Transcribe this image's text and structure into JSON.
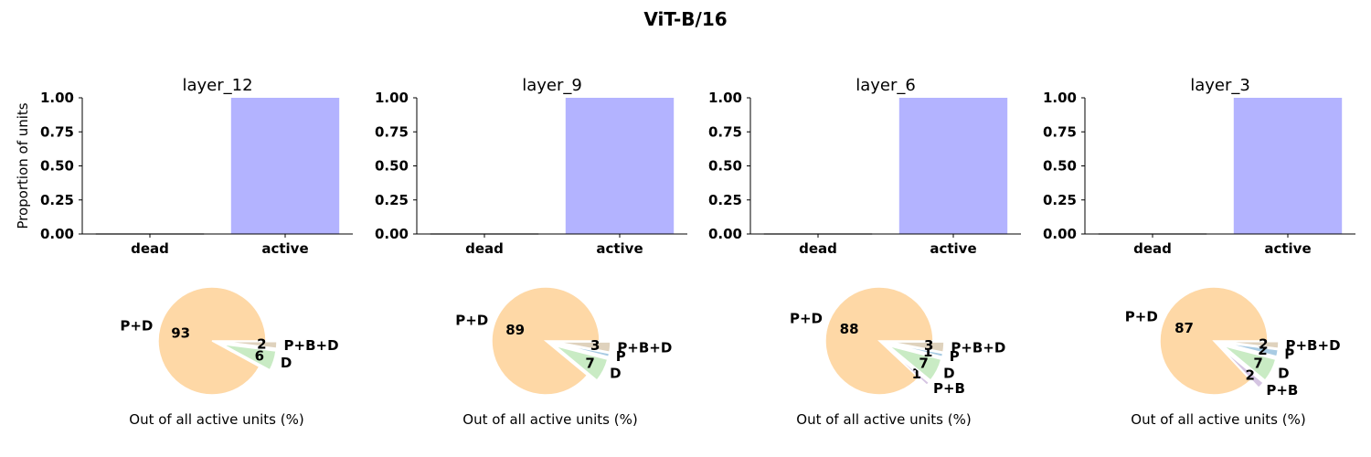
{
  "chart_data": {
    "title": "ViT-B/16",
    "bar_ylabel": "Proportion of units",
    "pie_caption": "Out of all active units (%)",
    "colors": {
      "active": "#b3b3ff",
      "dead": "#333333",
      "P+D": "#fed8a6",
      "D": "#c9ebc4",
      "P": "#a8cbe3",
      "P+B+D": "#dfd2bd",
      "P+B": "#d5c5e2"
    },
    "panels": [
      {
        "title": "layer_12",
        "bar": {
          "type": "bar",
          "categories": [
            "dead",
            "active"
          ],
          "values": [
            0.0,
            1.0
          ],
          "ylim": [
            0,
            1
          ],
          "yticks": [
            "0.00",
            "0.25",
            "0.50",
            "0.75",
            "1.00"
          ]
        },
        "pie": {
          "type": "pie",
          "slices": [
            {
              "label": "P+D",
              "value": 93,
              "pct": "93"
            },
            {
              "label": "D",
              "value": 6,
              "pct": "6"
            },
            {
              "label": "P+B+D",
              "value": 2,
              "pct": "2"
            }
          ]
        }
      },
      {
        "title": "layer_9",
        "bar": {
          "type": "bar",
          "categories": [
            "dead",
            "active"
          ],
          "values": [
            0.0,
            1.0
          ],
          "ylim": [
            0,
            1
          ],
          "yticks": [
            "0.00",
            "0.25",
            "0.50",
            "0.75",
            "1.00"
          ]
        },
        "pie": {
          "type": "pie",
          "slices": [
            {
              "label": "P+D",
              "value": 89,
              "pct": "89"
            },
            {
              "label": "D",
              "value": 7,
              "pct": "7"
            },
            {
              "label": "P",
              "value": 1,
              "pct": ""
            },
            {
              "label": "P+B+D",
              "value": 3,
              "pct": "3"
            }
          ]
        }
      },
      {
        "title": "layer_6",
        "bar": {
          "type": "bar",
          "categories": [
            "dead",
            "active"
          ],
          "values": [
            0.0,
            1.0
          ],
          "ylim": [
            0,
            1
          ],
          "yticks": [
            "0.00",
            "0.25",
            "0.50",
            "0.75",
            "1.00"
          ]
        },
        "pie": {
          "type": "pie",
          "slices": [
            {
              "label": "P+D",
              "value": 88,
              "pct": "88"
            },
            {
              "label": "P+B",
              "value": 1,
              "pct": "1"
            },
            {
              "label": "D",
              "value": 7,
              "pct": "7"
            },
            {
              "label": "P",
              "value": 1,
              "pct": "1"
            },
            {
              "label": "P+B+D",
              "value": 3,
              "pct": "3"
            }
          ]
        }
      },
      {
        "title": "layer_3",
        "bar": {
          "type": "bar",
          "categories": [
            "dead",
            "active"
          ],
          "values": [
            0.0,
            1.0
          ],
          "ylim": [
            0,
            1
          ],
          "yticks": [
            "0.00",
            "0.25",
            "0.50",
            "0.75",
            "1.00"
          ]
        },
        "pie": {
          "type": "pie",
          "slices": [
            {
              "label": "P+D",
              "value": 87,
              "pct": "87"
            },
            {
              "label": "P+B",
              "value": 2,
              "pct": "2"
            },
            {
              "label": "D",
              "value": 7,
              "pct": "7"
            },
            {
              "label": "P",
              "value": 2,
              "pct": "2"
            },
            {
              "label": "P+B+D",
              "value": 2,
              "pct": "2"
            }
          ]
        }
      }
    ]
  }
}
